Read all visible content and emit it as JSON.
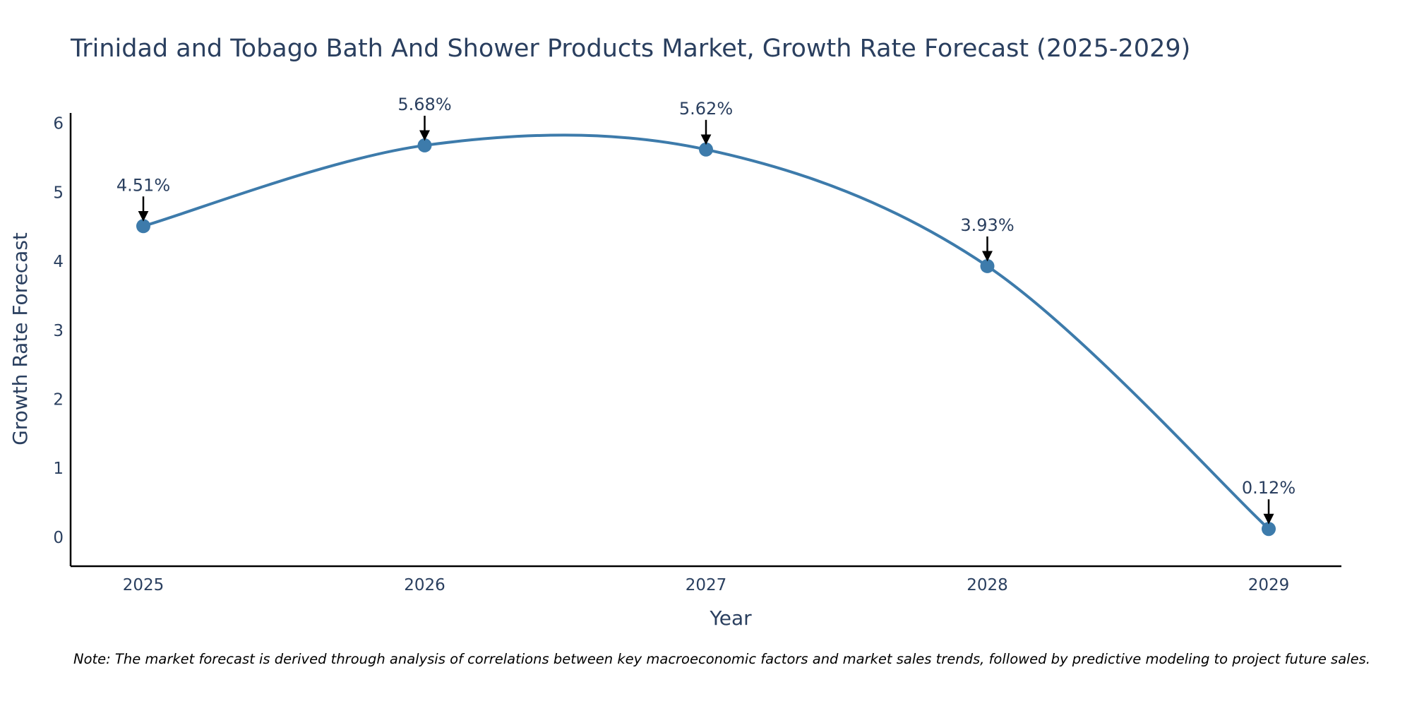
{
  "chart_data": {
    "type": "line",
    "title": "Trinidad and Tobago Bath And Shower Products Market, Growth Rate Forecast (2025-2029)",
    "xlabel": "Year",
    "ylabel": "Growth Rate Forecast",
    "categories": [
      "2025",
      "2026",
      "2027",
      "2028",
      "2029"
    ],
    "series": [
      {
        "name": "Growth Rate Forecast",
        "values": [
          4.51,
          5.68,
          5.62,
          3.93,
          0.12
        ],
        "labels": [
          "4.51%",
          "5.68%",
          "5.62%",
          "3.93%",
          "0.12%"
        ]
      }
    ],
    "yticks": [
      0,
      1,
      2,
      3,
      4,
      5,
      6
    ],
    "yticklabels": [
      "0",
      "1",
      "2",
      "3",
      "4",
      "5",
      "6"
    ],
    "ylim": [
      -0.42,
      6.15
    ],
    "grid": false,
    "legend": "none",
    "line_color": "#3d7bab",
    "marker_color": "#3d7bab",
    "arrow_color": "#000000",
    "text_color": "#2a3f5f"
  },
  "note": "Note: The market forecast is derived through analysis of correlations between key macroeconomic factors and market sales trends, followed by predictive modeling to project future sales."
}
